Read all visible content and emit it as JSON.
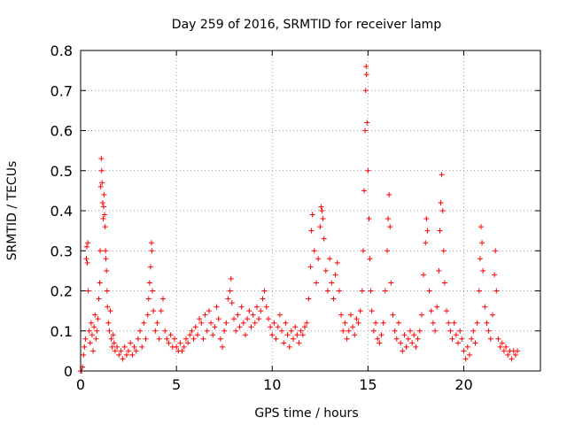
{
  "chart_data": {
    "type": "scatter",
    "title": "Day 259 of 2016, SRMTID for receiver lamp",
    "xlabel": "GPS time / hours",
    "ylabel": "SRMTID / TECUs",
    "xlim": [
      0,
      24
    ],
    "ylim": [
      0,
      0.8
    ],
    "xticks": [
      0,
      5,
      10,
      15,
      20
    ],
    "yticks": [
      0,
      0.1,
      0.2,
      0.3,
      0.4,
      0.5,
      0.6,
      0.7,
      0.8
    ],
    "xtick_labels": [
      "0",
      "5",
      "10",
      "15",
      "20"
    ],
    "ytick_labels": [
      "0",
      "0.1",
      "0.2",
      "0.3",
      "0.4",
      "0.5",
      "0.6",
      "0.7",
      "0.8"
    ],
    "grid": true,
    "marker": "plus",
    "color": "#ff0000",
    "series": [
      {
        "name": "lamp",
        "points": [
          [
            0.0,
            0.0
          ],
          [
            0.05,
            0.0
          ],
          [
            0.1,
            0.01
          ],
          [
            0.15,
            0.04
          ],
          [
            0.2,
            0.06
          ],
          [
            0.25,
            0.08
          ],
          [
            0.3,
            0.28
          ],
          [
            0.32,
            0.31
          ],
          [
            0.35,
            0.27
          ],
          [
            0.38,
            0.32
          ],
          [
            0.4,
            0.2
          ],
          [
            0.45,
            0.1
          ],
          [
            0.5,
            0.07
          ],
          [
            0.55,
            0.12
          ],
          [
            0.6,
            0.09
          ],
          [
            0.65,
            0.05
          ],
          [
            0.7,
            0.11
          ],
          [
            0.75,
            0.14
          ],
          [
            0.8,
            0.08
          ],
          [
            0.85,
            0.1
          ],
          [
            0.9,
            0.13
          ],
          [
            0.95,
            0.18
          ],
          [
            1.0,
            0.22
          ],
          [
            1.02,
            0.3
          ],
          [
            1.05,
            0.46
          ],
          [
            1.08,
            0.53
          ],
          [
            1.1,
            0.5
          ],
          [
            1.12,
            0.47
          ],
          [
            1.15,
            0.42
          ],
          [
            1.18,
            0.38
          ],
          [
            1.2,
            0.41
          ],
          [
            1.22,
            0.44
          ],
          [
            1.25,
            0.39
          ],
          [
            1.28,
            0.36
          ],
          [
            1.3,
            0.3
          ],
          [
            1.32,
            0.28
          ],
          [
            1.35,
            0.25
          ],
          [
            1.38,
            0.2
          ],
          [
            1.4,
            0.16
          ],
          [
            1.45,
            0.12
          ],
          [
            1.5,
            0.1
          ],
          [
            1.55,
            0.15
          ],
          [
            1.6,
            0.08
          ],
          [
            1.65,
            0.06
          ],
          [
            1.7,
            0.09
          ],
          [
            1.75,
            0.07
          ],
          [
            1.8,
            0.05
          ],
          [
            1.9,
            0.06
          ],
          [
            2.0,
            0.04
          ],
          [
            2.1,
            0.05
          ],
          [
            2.2,
            0.03
          ],
          [
            2.3,
            0.06
          ],
          [
            2.4,
            0.04
          ],
          [
            2.5,
            0.05
          ],
          [
            2.6,
            0.07
          ],
          [
            2.7,
            0.04
          ],
          [
            2.8,
            0.06
          ],
          [
            2.9,
            0.05
          ],
          [
            3.0,
            0.08
          ],
          [
            3.1,
            0.1
          ],
          [
            3.2,
            0.06
          ],
          [
            3.3,
            0.12
          ],
          [
            3.4,
            0.08
          ],
          [
            3.5,
            0.14
          ],
          [
            3.55,
            0.18
          ],
          [
            3.6,
            0.22
          ],
          [
            3.65,
            0.26
          ],
          [
            3.7,
            0.32
          ],
          [
            3.72,
            0.3
          ],
          [
            3.75,
            0.2
          ],
          [
            3.8,
            0.15
          ],
          [
            3.9,
            0.1
          ],
          [
            4.0,
            0.12
          ],
          [
            4.1,
            0.08
          ],
          [
            4.2,
            0.15
          ],
          [
            4.3,
            0.18
          ],
          [
            4.4,
            0.1
          ],
          [
            4.5,
            0.08
          ],
          [
            4.6,
            0.07
          ],
          [
            4.7,
            0.09
          ],
          [
            4.8,
            0.06
          ],
          [
            4.9,
            0.08
          ],
          [
            5.0,
            0.06
          ],
          [
            5.1,
            0.05
          ],
          [
            5.2,
            0.07
          ],
          [
            5.3,
            0.05
          ],
          [
            5.4,
            0.06
          ],
          [
            5.5,
            0.08
          ],
          [
            5.6,
            0.07
          ],
          [
            5.7,
            0.09
          ],
          [
            5.8,
            0.1
          ],
          [
            5.9,
            0.08
          ],
          [
            6.0,
            0.11
          ],
          [
            6.1,
            0.09
          ],
          [
            6.2,
            0.13
          ],
          [
            6.3,
            0.12
          ],
          [
            6.4,
            0.08
          ],
          [
            6.5,
            0.14
          ],
          [
            6.6,
            0.1
          ],
          [
            6.7,
            0.15
          ],
          [
            6.8,
            0.12
          ],
          [
            6.9,
            0.09
          ],
          [
            7.0,
            0.11
          ],
          [
            7.1,
            0.16
          ],
          [
            7.2,
            0.13
          ],
          [
            7.3,
            0.08
          ],
          [
            7.4,
            0.06
          ],
          [
            7.5,
            0.1
          ],
          [
            7.6,
            0.12
          ],
          [
            7.7,
            0.18
          ],
          [
            7.8,
            0.2
          ],
          [
            7.85,
            0.23
          ],
          [
            7.9,
            0.17
          ],
          [
            8.0,
            0.13
          ],
          [
            8.1,
            0.1
          ],
          [
            8.2,
            0.14
          ],
          [
            8.3,
            0.11
          ],
          [
            8.4,
            0.16
          ],
          [
            8.5,
            0.12
          ],
          [
            8.6,
            0.09
          ],
          [
            8.7,
            0.13
          ],
          [
            8.8,
            0.15
          ],
          [
            8.9,
            0.11
          ],
          [
            9.0,
            0.14
          ],
          [
            9.1,
            0.12
          ],
          [
            9.2,
            0.16
          ],
          [
            9.3,
            0.13
          ],
          [
            9.4,
            0.15
          ],
          [
            9.5,
            0.18
          ],
          [
            9.6,
            0.2
          ],
          [
            9.7,
            0.16
          ],
          [
            9.8,
            0.13
          ],
          [
            9.9,
            0.11
          ],
          [
            10.0,
            0.09
          ],
          [
            10.1,
            0.12
          ],
          [
            10.2,
            0.08
          ],
          [
            10.3,
            0.11
          ],
          [
            10.4,
            0.14
          ],
          [
            10.5,
            0.1
          ],
          [
            10.6,
            0.07
          ],
          [
            10.7,
            0.12
          ],
          [
            10.8,
            0.09
          ],
          [
            10.9,
            0.06
          ],
          [
            11.0,
            0.1
          ],
          [
            11.1,
            0.08
          ],
          [
            11.2,
            0.11
          ],
          [
            11.3,
            0.09
          ],
          [
            11.4,
            0.07
          ],
          [
            11.5,
            0.1
          ],
          [
            11.6,
            0.09
          ],
          [
            11.7,
            0.11
          ],
          [
            11.8,
            0.12
          ],
          [
            11.9,
            0.18
          ],
          [
            12.0,
            0.26
          ],
          [
            12.05,
            0.35
          ],
          [
            12.1,
            0.39
          ],
          [
            12.2,
            0.3
          ],
          [
            12.3,
            0.22
          ],
          [
            12.4,
            0.28
          ],
          [
            12.5,
            0.36
          ],
          [
            12.55,
            0.41
          ],
          [
            12.6,
            0.4
          ],
          [
            12.65,
            0.38
          ],
          [
            12.7,
            0.33
          ],
          [
            12.8,
            0.25
          ],
          [
            12.9,
            0.2
          ],
          [
            13.0,
            0.28
          ],
          [
            13.1,
            0.22
          ],
          [
            13.2,
            0.18
          ],
          [
            13.3,
            0.24
          ],
          [
            13.4,
            0.27
          ],
          [
            13.5,
            0.2
          ],
          [
            13.6,
            0.14
          ],
          [
            13.7,
            0.1
          ],
          [
            13.8,
            0.12
          ],
          [
            13.9,
            0.08
          ],
          [
            14.0,
            0.1
          ],
          [
            14.1,
            0.14
          ],
          [
            14.2,
            0.11
          ],
          [
            14.3,
            0.09
          ],
          [
            14.4,
            0.13
          ],
          [
            14.5,
            0.12
          ],
          [
            14.6,
            0.15
          ],
          [
            14.7,
            0.2
          ],
          [
            14.75,
            0.3
          ],
          [
            14.8,
            0.45
          ],
          [
            14.85,
            0.6
          ],
          [
            14.88,
            0.7
          ],
          [
            14.9,
            0.76
          ],
          [
            14.92,
            0.74
          ],
          [
            14.95,
            0.62
          ],
          [
            15.0,
            0.5
          ],
          [
            15.05,
            0.38
          ],
          [
            15.1,
            0.28
          ],
          [
            15.15,
            0.2
          ],
          [
            15.2,
            0.15
          ],
          [
            15.3,
            0.1
          ],
          [
            15.4,
            0.12
          ],
          [
            15.5,
            0.08
          ],
          [
            15.6,
            0.07
          ],
          [
            15.7,
            0.09
          ],
          [
            15.8,
            0.12
          ],
          [
            15.9,
            0.2
          ],
          [
            16.0,
            0.3
          ],
          [
            16.05,
            0.38
          ],
          [
            16.1,
            0.44
          ],
          [
            16.15,
            0.36
          ],
          [
            16.2,
            0.22
          ],
          [
            16.3,
            0.14
          ],
          [
            16.4,
            0.1
          ],
          [
            16.5,
            0.08
          ],
          [
            16.6,
            0.12
          ],
          [
            16.7,
            0.07
          ],
          [
            16.8,
            0.05
          ],
          [
            16.9,
            0.09
          ],
          [
            17.0,
            0.06
          ],
          [
            17.1,
            0.08
          ],
          [
            17.2,
            0.1
          ],
          [
            17.3,
            0.07
          ],
          [
            17.4,
            0.09
          ],
          [
            17.5,
            0.06
          ],
          [
            17.6,
            0.08
          ],
          [
            17.7,
            0.1
          ],
          [
            17.8,
            0.14
          ],
          [
            17.9,
            0.24
          ],
          [
            18.0,
            0.32
          ],
          [
            18.05,
            0.38
          ],
          [
            18.1,
            0.35
          ],
          [
            18.2,
            0.2
          ],
          [
            18.3,
            0.15
          ],
          [
            18.4,
            0.12
          ],
          [
            18.5,
            0.1
          ],
          [
            18.6,
            0.16
          ],
          [
            18.7,
            0.25
          ],
          [
            18.75,
            0.35
          ],
          [
            18.8,
            0.42
          ],
          [
            18.85,
            0.49
          ],
          [
            18.9,
            0.4
          ],
          [
            18.95,
            0.3
          ],
          [
            19.0,
            0.22
          ],
          [
            19.1,
            0.15
          ],
          [
            19.2,
            0.12
          ],
          [
            19.3,
            0.1
          ],
          [
            19.4,
            0.08
          ],
          [
            19.5,
            0.12
          ],
          [
            19.6,
            0.09
          ],
          [
            19.7,
            0.07
          ],
          [
            19.8,
            0.1
          ],
          [
            19.9,
            0.08
          ],
          [
            20.0,
            0.05
          ],
          [
            20.1,
            0.03
          ],
          [
            20.2,
            0.06
          ],
          [
            20.3,
            0.04
          ],
          [
            20.4,
            0.08
          ],
          [
            20.5,
            0.1
          ],
          [
            20.6,
            0.07
          ],
          [
            20.7,
            0.12
          ],
          [
            20.8,
            0.2
          ],
          [
            20.85,
            0.28
          ],
          [
            20.9,
            0.36
          ],
          [
            20.95,
            0.32
          ],
          [
            21.0,
            0.25
          ],
          [
            21.1,
            0.16
          ],
          [
            21.2,
            0.12
          ],
          [
            21.3,
            0.1
          ],
          [
            21.4,
            0.08
          ],
          [
            21.5,
            0.14
          ],
          [
            21.6,
            0.24
          ],
          [
            21.65,
            0.3
          ],
          [
            21.7,
            0.2
          ],
          [
            21.8,
            0.08
          ],
          [
            21.9,
            0.06
          ],
          [
            22.0,
            0.07
          ],
          [
            22.1,
            0.05
          ],
          [
            22.2,
            0.06
          ],
          [
            22.3,
            0.04
          ],
          [
            22.4,
            0.05
          ],
          [
            22.5,
            0.03
          ],
          [
            22.6,
            0.05
          ],
          [
            22.7,
            0.04
          ],
          [
            22.8,
            0.05
          ]
        ]
      }
    ]
  }
}
